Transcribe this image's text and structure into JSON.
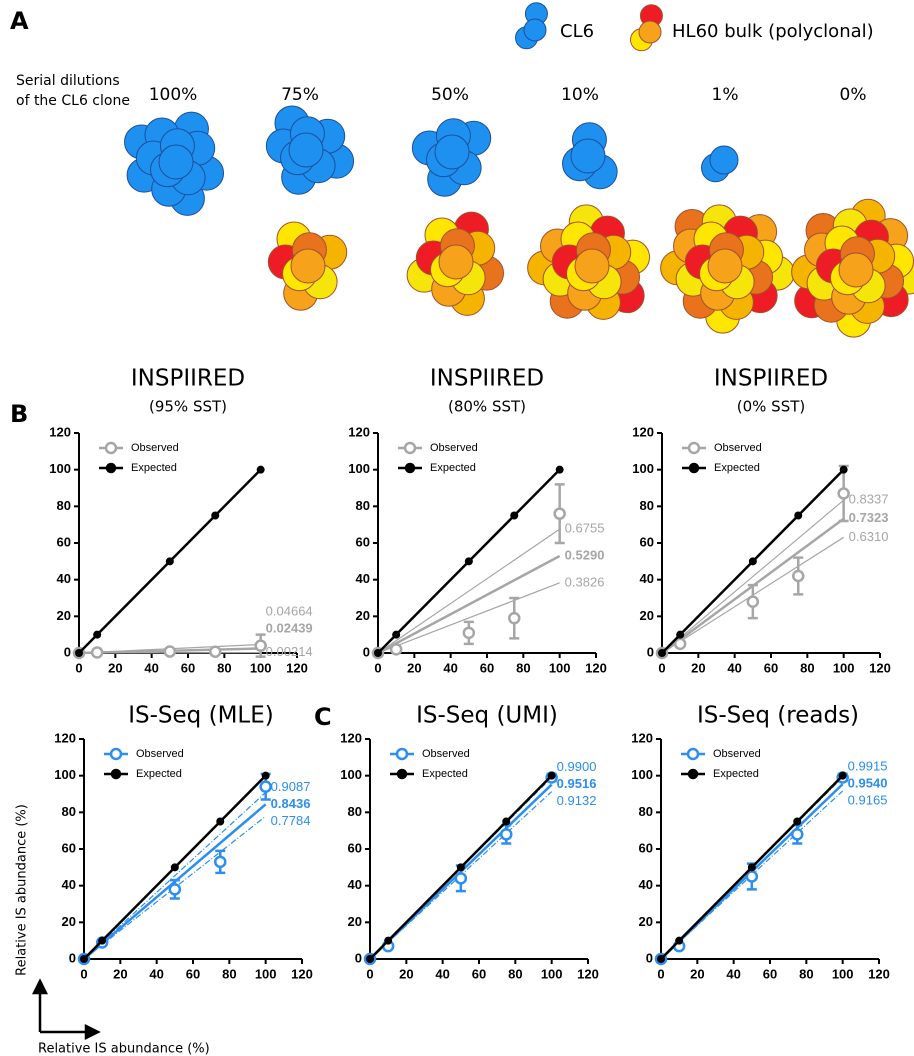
{
  "figure": {
    "panel_labels": [
      "A",
      "B",
      "C"
    ],
    "legend": [
      "CL6",
      "HL60 bulk (polyclonal)"
    ],
    "dilution_label": [
      "Serial dilutions",
      "of the CL6 clone"
    ],
    "dilutions": [
      "100%",
      "75%",
      "50%",
      "10%",
      "1%",
      "0%"
    ],
    "axis_label": "Relative IS abundance (%)"
  },
  "chart_data": [
    {
      "type": "line",
      "title": "INSPIIRED",
      "subtitle": "(95% SST)",
      "x": [
        0,
        10,
        50,
        75,
        100
      ],
      "series": [
        {
          "name": "Observed",
          "color": "#a6a6a6",
          "values": [
            0,
            0.3,
            0.8,
            0.7,
            4
          ],
          "errors": [
            0,
            0,
            0.5,
            0.5,
            6
          ]
        },
        {
          "name": "Expected",
          "color": "#000000",
          "values": [
            0,
            10,
            50,
            75,
            100
          ]
        }
      ],
      "fit": {
        "values": [
          0.04664,
          0.02439,
          0.00214
        ],
        "value_labels": [
          "0.04664",
          "0.02439",
          "0.00214"
        ]
      },
      "xlim": [
        0,
        120
      ],
      "xticks": [
        0,
        20,
        40,
        60,
        80,
        100,
        120
      ],
      "ylim": [
        0,
        120
      ],
      "yticks": [
        0,
        20,
        40,
        60,
        80,
        100,
        120
      ],
      "legend": "upper left"
    },
    {
      "type": "line",
      "title": "INSPIIRED",
      "subtitle": "(80% SST)",
      "x": [
        0,
        10,
        50,
        75,
        100
      ],
      "series": [
        {
          "name": "Observed",
          "color": "#a6a6a6",
          "values": [
            0,
            2,
            11,
            19,
            76
          ],
          "errors": [
            0,
            1,
            6,
            11,
            16
          ]
        },
        {
          "name": "Expected",
          "color": "#000000",
          "values": [
            0,
            10,
            50,
            75,
            100
          ]
        }
      ],
      "fit": {
        "values": [
          0.6755,
          0.529,
          0.3826
        ],
        "value_labels": [
          "0.6755",
          "0.5290",
          "0.3826"
        ]
      },
      "xlim": [
        0,
        120
      ],
      "xticks": [
        0,
        20,
        40,
        60,
        80,
        100,
        120
      ],
      "ylim": [
        0,
        120
      ],
      "yticks": [
        0,
        20,
        40,
        60,
        80,
        100,
        120
      ],
      "legend": "upper left"
    },
    {
      "type": "line",
      "title": "INSPIIRED",
      "subtitle": "(0% SST)",
      "x": [
        0,
        10,
        50,
        75,
        100
      ],
      "series": [
        {
          "name": "Observed",
          "color": "#a6a6a6",
          "values": [
            0,
            5,
            28,
            42,
            87
          ],
          "errors": [
            0,
            1,
            9,
            10,
            15
          ]
        },
        {
          "name": "Expected",
          "color": "#000000",
          "values": [
            0,
            10,
            50,
            75,
            100
          ]
        }
      ],
      "fit": {
        "values": [
          0.8337,
          0.7323,
          0.631
        ],
        "value_labels": [
          "0.8337",
          "0.7323",
          "0.6310"
        ]
      },
      "xlim": [
        0,
        120
      ],
      "xticks": [
        0,
        20,
        40,
        60,
        80,
        100,
        120
      ],
      "ylim": [
        0,
        120
      ],
      "yticks": [
        0,
        20,
        40,
        60,
        80,
        100,
        120
      ],
      "legend": "upper left"
    },
    {
      "type": "line",
      "title": "IS-Seq (MLE)",
      "x": [
        0,
        10,
        50,
        75,
        100
      ],
      "series": [
        {
          "name": "Observed",
          "color": "#2b8ef0",
          "values": [
            0,
            9,
            38,
            53,
            94
          ],
          "errors": [
            0,
            1,
            5,
            6,
            7
          ]
        },
        {
          "name": "Expected",
          "color": "#000000",
          "values": [
            0,
            10,
            50,
            75,
            100
          ]
        }
      ],
      "fit": {
        "values": [
          0.9087,
          0.8436,
          0.7784
        ],
        "value_labels": [
          "0.9087",
          "0.8436",
          "0.7784"
        ]
      },
      "xlim": [
        0,
        120
      ],
      "xticks": [
        0,
        20,
        40,
        60,
        80,
        100,
        120
      ],
      "ylim": [
        0,
        120
      ],
      "yticks": [
        0,
        20,
        40,
        60,
        80,
        100,
        120
      ],
      "legend": "upper left"
    },
    {
      "type": "line",
      "title": "IS-Seq (UMI)",
      "x": [
        0,
        10,
        50,
        75,
        100
      ],
      "series": [
        {
          "name": "Observed",
          "color": "#2b8ef0",
          "values": [
            0,
            7,
            44,
            68,
            99
          ],
          "errors": [
            0,
            1,
            7,
            5,
            2
          ]
        },
        {
          "name": "Expected",
          "color": "#000000",
          "values": [
            0,
            10,
            50,
            75,
            100
          ]
        }
      ],
      "fit": {
        "values": [
          0.99,
          0.9516,
          0.9132
        ],
        "value_labels": [
          "0.9900",
          "0.9516",
          "0.9132"
        ]
      },
      "xlim": [
        0,
        120
      ],
      "xticks": [
        0,
        20,
        40,
        60,
        80,
        100,
        120
      ],
      "ylim": [
        0,
        120
      ],
      "yticks": [
        0,
        20,
        40,
        60,
        80,
        100,
        120
      ],
      "legend": "upper left"
    },
    {
      "type": "line",
      "title": "IS-Seq (reads)",
      "x": [
        0,
        10,
        50,
        75,
        100
      ],
      "series": [
        {
          "name": "Observed",
          "color": "#2b8ef0",
          "values": [
            0,
            7,
            45,
            68,
            99
          ],
          "errors": [
            0,
            1,
            7,
            5,
            2
          ]
        },
        {
          "name": "Expected",
          "color": "#000000",
          "values": [
            0,
            10,
            50,
            75,
            100
          ]
        }
      ],
      "fit": {
        "values": [
          0.9915,
          0.954,
          0.9165
        ],
        "value_labels": [
          "0.9915",
          "0.9540",
          "0.9165"
        ]
      },
      "xlim": [
        0,
        120
      ],
      "xticks": [
        0,
        20,
        40,
        60,
        80,
        100,
        120
      ],
      "ylim": [
        0,
        120
      ],
      "yticks": [
        0,
        20,
        40,
        60,
        80,
        100,
        120
      ],
      "legend": "upper left"
    }
  ]
}
